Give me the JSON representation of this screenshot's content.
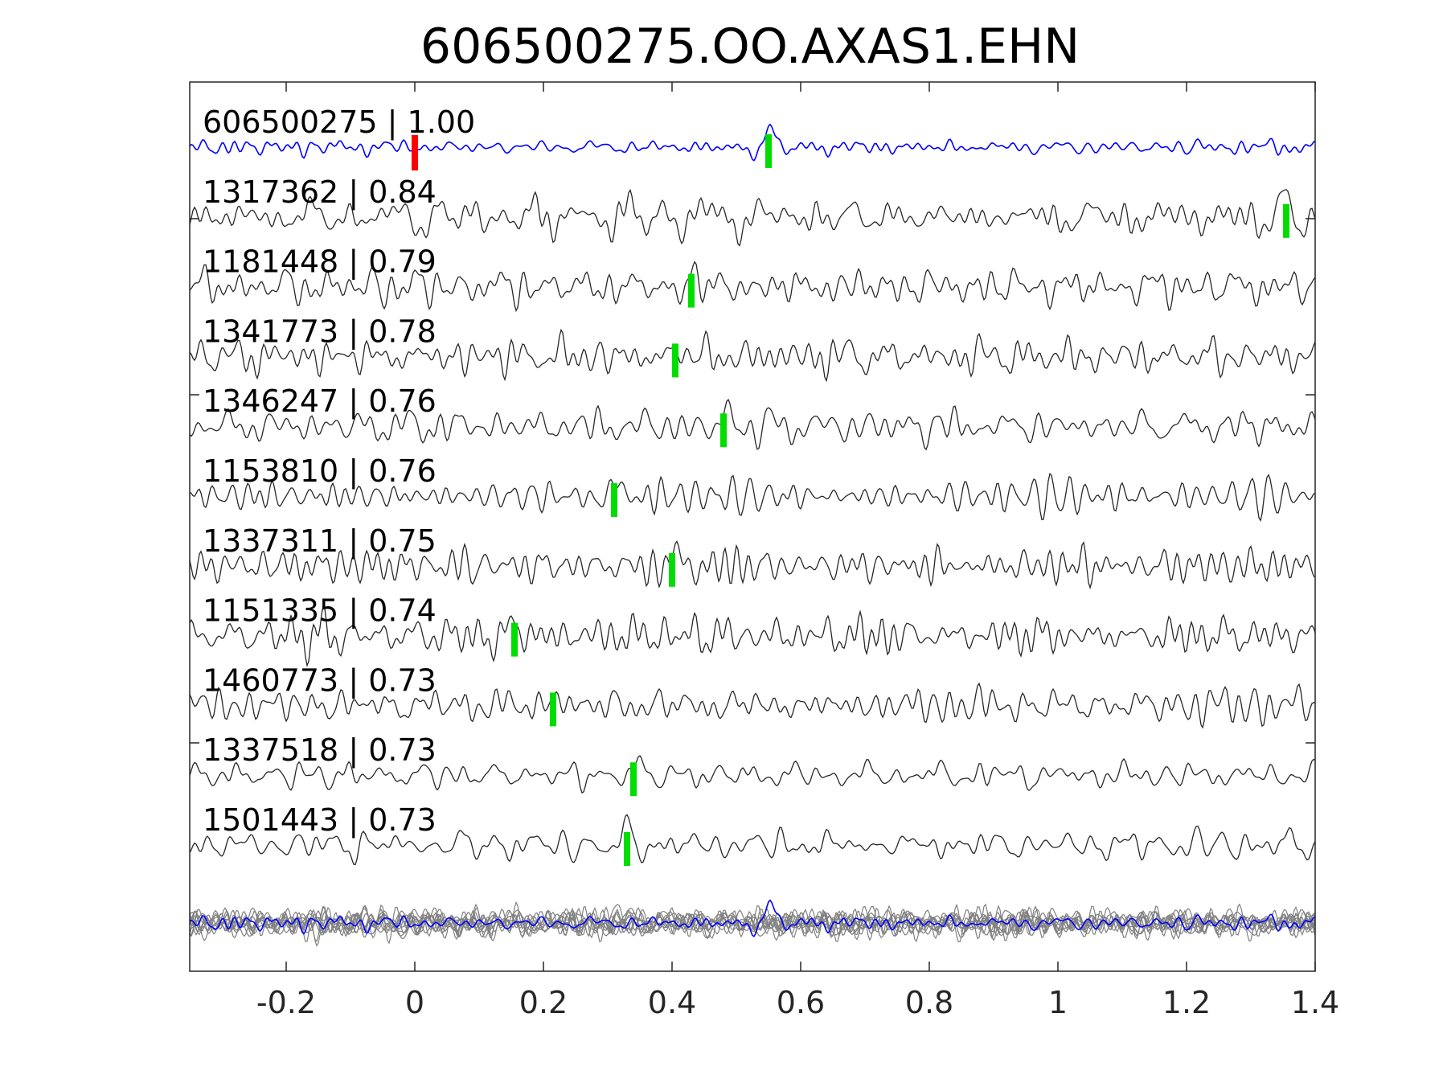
{
  "chart_data": {
    "type": "line",
    "title": "606500275.OO.AXAS1.EHN",
    "xlabel": "",
    "ylabel": "",
    "xlim": [
      -0.35,
      1.4
    ],
    "x_ticks": [
      -0.2,
      0,
      0.2,
      0.4,
      0.6,
      0.8,
      1,
      1.2,
      1.4
    ],
    "x_tick_labels": [
      "-0.2",
      "0",
      "0.2",
      "0.4",
      "0.6",
      "0.8",
      "1",
      "1.2",
      "1.4"
    ],
    "grid": false,
    "legend": "none",
    "reference_marker": {
      "x": 0,
      "color": "#ff0000"
    },
    "traces": [
      {
        "label": "606500275 | 1.00",
        "pick": 0.55,
        "color": "#0000ff",
        "reference": true
      },
      {
        "label": "1317362 | 0.84",
        "pick": 1.355,
        "color": "#262626"
      },
      {
        "label": "1181448 | 0.79",
        "pick": 0.43,
        "color": "#262626"
      },
      {
        "label": "1341773 | 0.78",
        "pick": 0.405,
        "color": "#262626"
      },
      {
        "label": "1346247 | 0.76",
        "pick": 0.48,
        "color": "#262626"
      },
      {
        "label": "1153810 | 0.76",
        "pick": 0.31,
        "color": "#262626"
      },
      {
        "label": "1337311 | 0.75",
        "pick": 0.4,
        "color": "#262626"
      },
      {
        "label": "1151335 | 0.74",
        "pick": 0.155,
        "color": "#262626"
      },
      {
        "label": "1460773 | 0.73",
        "pick": 0.215,
        "color": "#262626"
      },
      {
        "label": "1337518 | 0.73",
        "pick": 0.34,
        "color": "#262626"
      },
      {
        "label": "1501443 | 0.73",
        "pick": 0.33,
        "color": "#262626"
      }
    ],
    "stack_colors": {
      "reference": "#0000ff",
      "others": "#808080"
    },
    "pick_color": "#00dd00"
  }
}
